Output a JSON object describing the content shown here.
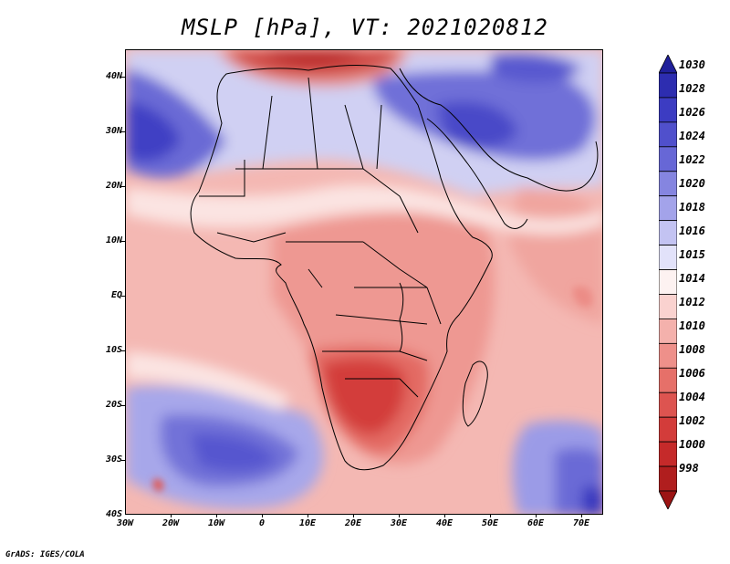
{
  "title": "MSLP [hPa], VT: 2021020812",
  "credit": "GrADS: IGES/COLA",
  "map": {
    "lat_labels": [
      "40N",
      "30N",
      "20N",
      "10N",
      "EQ",
      "10S",
      "20S",
      "30S",
      "40S"
    ],
    "lon_labels": [
      "30W",
      "20W",
      "10W",
      "0",
      "10E",
      "20E",
      "30E",
      "40E",
      "50E",
      "60E",
      "70E"
    ],
    "lat_range": [
      -40,
      45
    ],
    "lon_range": [
      -30,
      75
    ]
  },
  "colorbar": {
    "levels": [
      "1030",
      "1028",
      "1026",
      "1024",
      "1022",
      "1020",
      "1018",
      "1016",
      "1015",
      "1014",
      "1012",
      "1010",
      "1008",
      "1006",
      "1004",
      "1002",
      "1000",
      "998"
    ],
    "colors": [
      "#20209a",
      "#2d2db0",
      "#3c3cc2",
      "#5050cc",
      "#6767d6",
      "#8585e0",
      "#a3a3ea",
      "#c3c3f2",
      "#e2e2fa",
      "#fdf2f1",
      "#fad2cf",
      "#f4b1ac",
      "#ee908a",
      "#e67069",
      "#dd5450",
      "#d33c3a",
      "#c52a2a",
      "#b01e1e",
      "#9c1414"
    ]
  }
}
